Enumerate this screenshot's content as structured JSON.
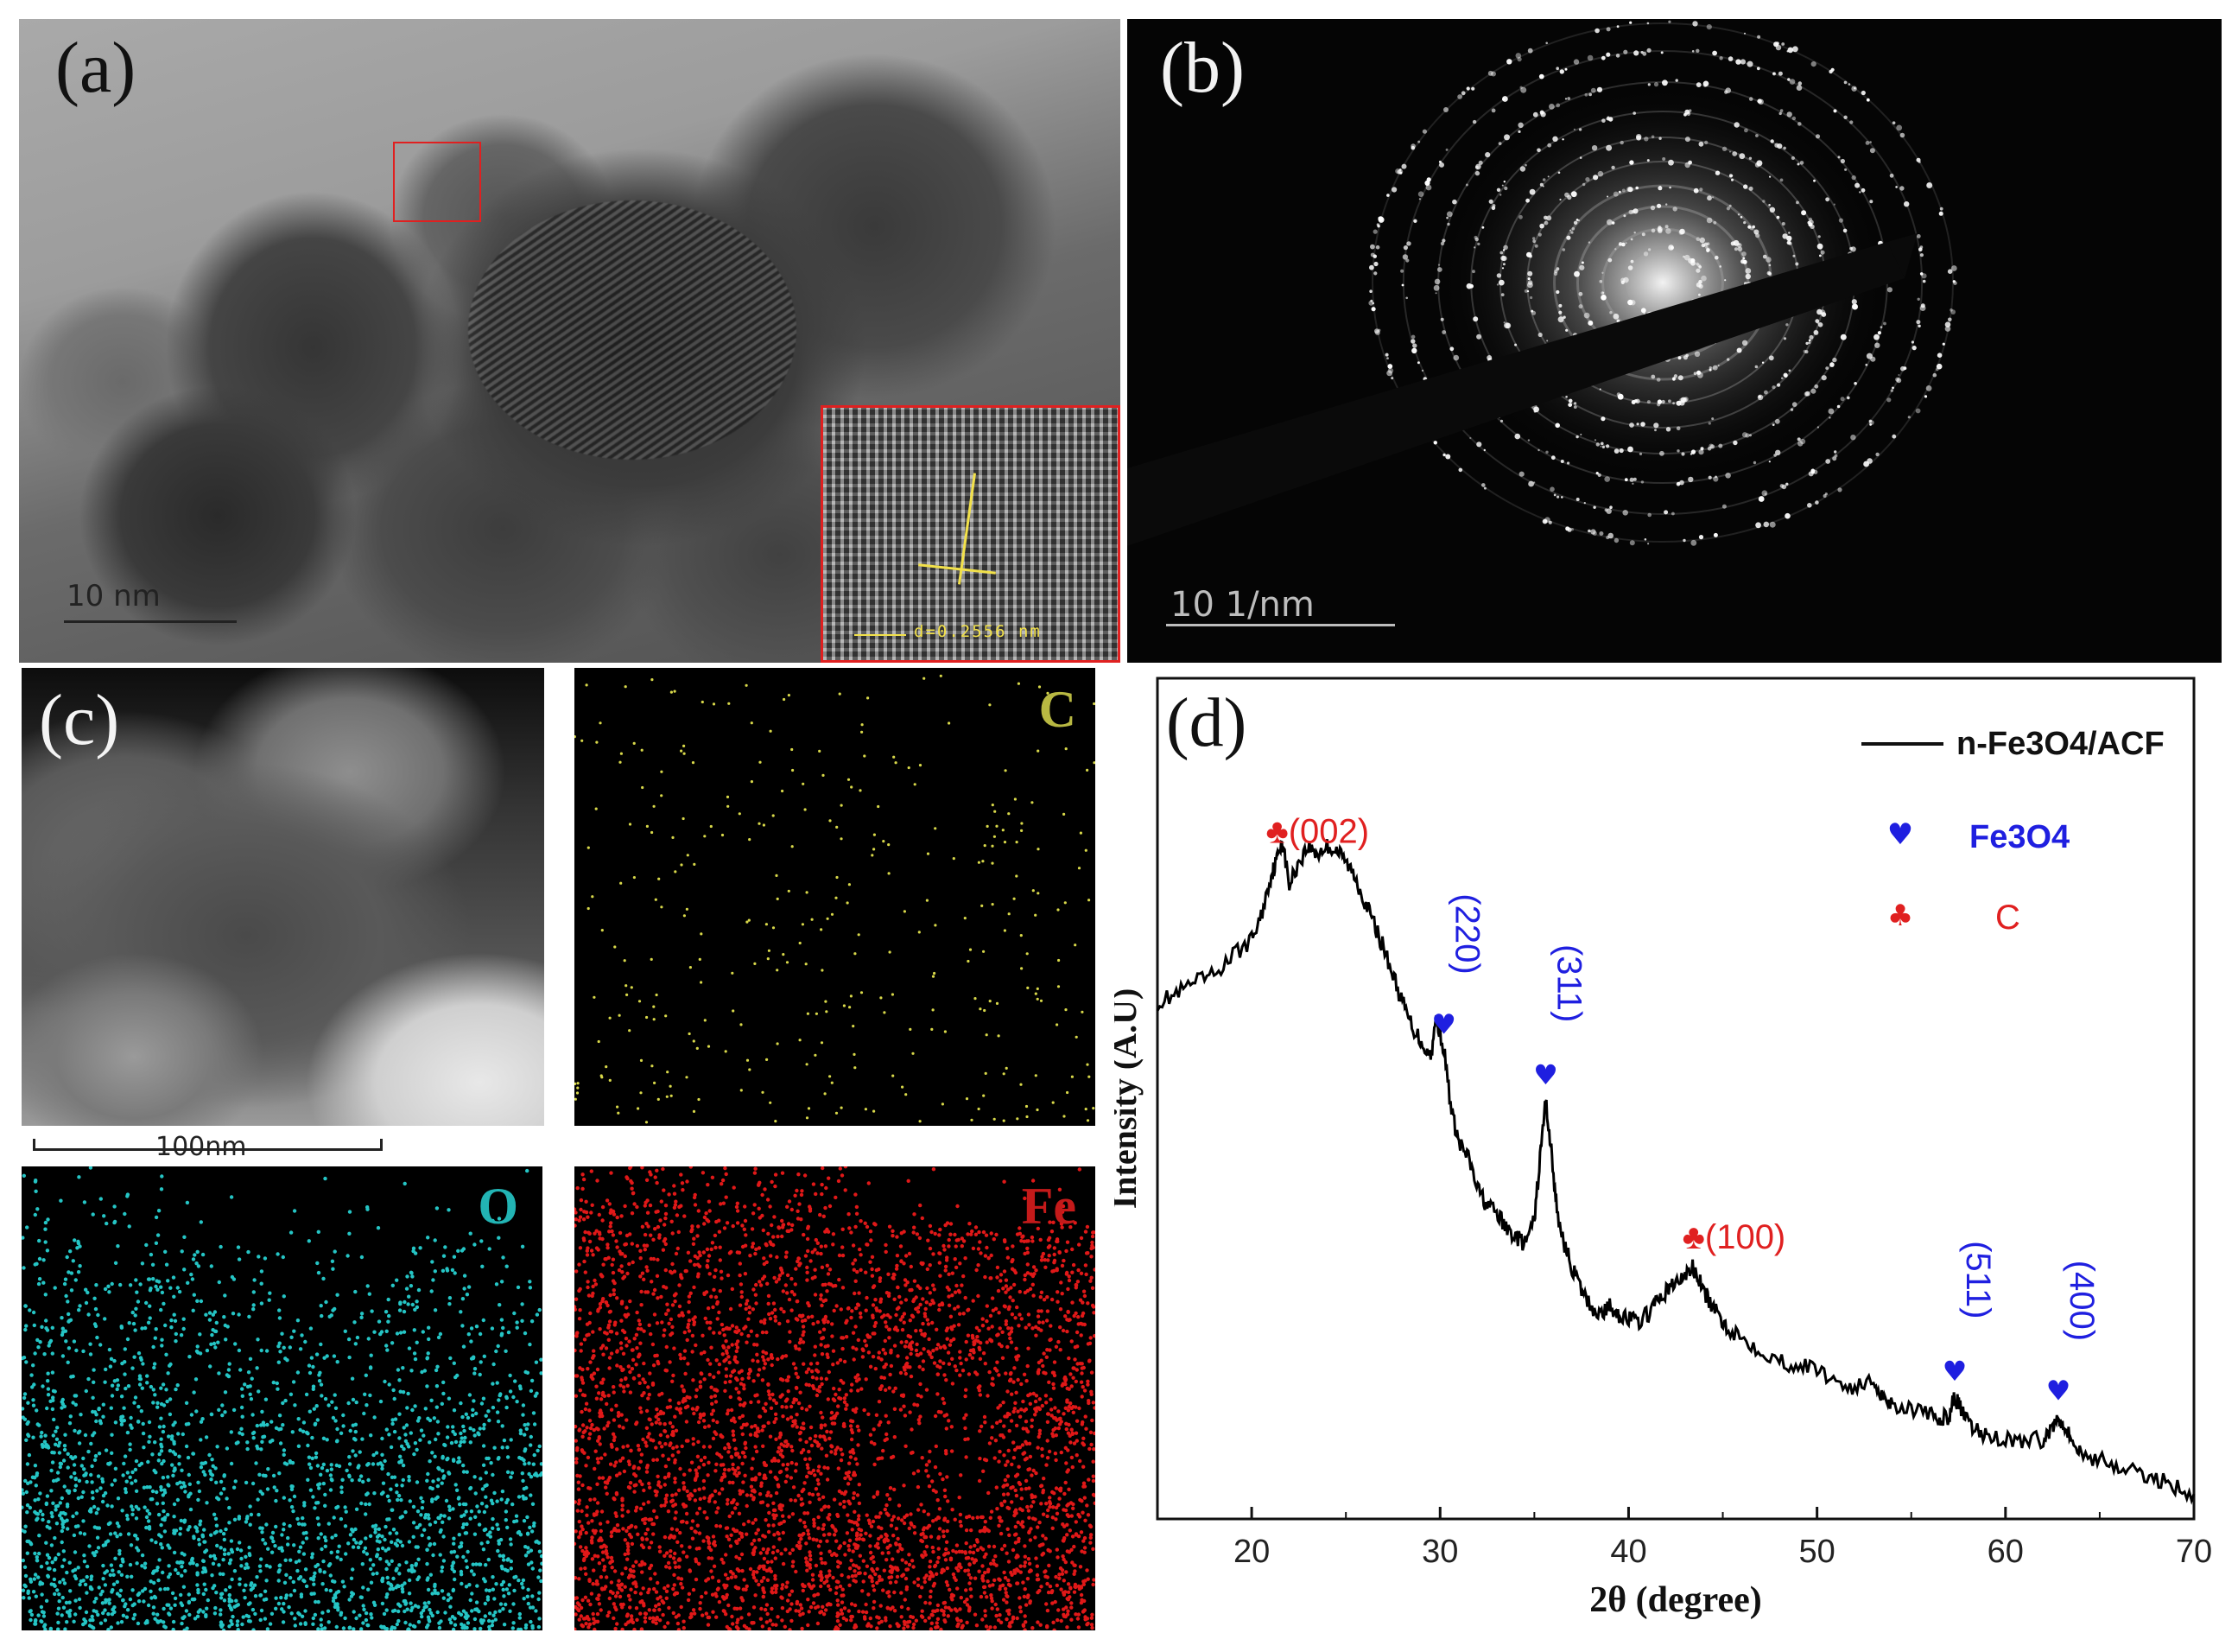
{
  "panels": {
    "a": {
      "label": "(a)",
      "scale_bar": "10 nm",
      "inset_annotation": "d=0.2556 nm"
    },
    "b": {
      "label": "(b)",
      "scale_bar": "10 1/nm"
    },
    "c": {
      "label": "(c)",
      "scale_bar": "100nm",
      "maps": {
        "C": "C",
        "O": "O",
        "Fe": "Fe"
      }
    },
    "d": {
      "label": "(d)"
    }
  },
  "colors": {
    "carbon_map": "#d8d84a",
    "oxygen_map": "#25c5c5",
    "iron_map": "#e01818",
    "fe3o4_marker": "#1f1fe0",
    "carbon_marker": "#e02020",
    "curve": "#000000"
  },
  "chart_data": {
    "type": "line",
    "xlabel": "2θ (degree)",
    "ylabel": "Intensity (A.U)",
    "xlim": [
      15,
      70
    ],
    "ylim": [
      0,
      100
    ],
    "xticks": [
      20,
      30,
      40,
      50,
      60,
      70
    ],
    "grid": false,
    "legend": {
      "placement": "top-right",
      "entries": [
        {
          "label": "n-Fe3O4/ACF",
          "marker": "line"
        },
        {
          "label": "Fe3O4",
          "marker": "♥"
        },
        {
          "label": "C",
          "marker": "♣"
        }
      ]
    },
    "series": [
      {
        "name": "n-Fe3O4/ACF",
        "x": [
          15,
          16,
          17,
          18,
          19,
          20,
          20.5,
          21,
          21.3,
          21.6,
          22,
          22.5,
          23,
          23.5,
          24,
          24.5,
          25,
          25.5,
          26,
          26.5,
          27,
          27.5,
          28,
          28.5,
          29,
          29.5,
          29.8,
          30.2,
          30.6,
          31,
          31.5,
          32,
          32.5,
          33,
          33.5,
          34,
          34.5,
          35,
          35.3,
          35.6,
          35.9,
          36.2,
          36.6,
          37,
          37.5,
          38,
          38.5,
          39,
          39.5,
          40,
          40.5,
          41,
          41.5,
          42,
          42.5,
          43,
          43.4,
          43.8,
          44.2,
          44.7,
          45.2,
          46,
          47,
          48,
          49,
          50,
          51,
          52,
          53,
          53.5,
          54,
          55,
          56,
          56.5,
          57,
          57.3,
          57.6,
          58,
          58.5,
          59,
          60,
          61,
          62,
          62.5,
          62.8,
          63.1,
          63.5,
          64,
          65,
          66,
          67,
          68,
          69,
          70
        ],
        "y": [
          64,
          65,
          66.5,
          67.5,
          70,
          72,
          75,
          80,
          82,
          85,
          79,
          82,
          84,
          83,
          84,
          83.5,
          82,
          80,
          77,
          74,
          71,
          67.5,
          64,
          61,
          59,
          57,
          62,
          58,
          50,
          46,
          44,
          40,
          38,
          37,
          35,
          34,
          33,
          36,
          44,
          51.5,
          45,
          37,
          33,
          30,
          27,
          25,
          24,
          25,
          24,
          23.5,
          23,
          24,
          25.5,
          27,
          28,
          29,
          30,
          28,
          26,
          24,
          22.5,
          21,
          19.5,
          18,
          17.5,
          17,
          15.5,
          14.5,
          15.5,
          13.5,
          12.5,
          12,
          11,
          10.5,
          11,
          13.5,
          12,
          10,
          9,
          8.5,
          8,
          7.8,
          8,
          9.5,
          11,
          10,
          8,
          6,
          5.5,
          4.5,
          3.5,
          3,
          2,
          1
        ]
      }
    ],
    "annotations": [
      {
        "text": "♣(002)",
        "x": 21.3,
        "y": 82,
        "color": "#e02020",
        "orient": "horizontal"
      },
      {
        "text": "(220)",
        "x": 30.2,
        "y": 58,
        "color": "#1f1fe0",
        "orient": "vertical",
        "marker": "♥"
      },
      {
        "text": "(311)",
        "x": 35.6,
        "y": 51.5,
        "color": "#1f1fe0",
        "orient": "vertical",
        "marker": "♥"
      },
      {
        "text": "♣(100)",
        "x": 43.4,
        "y": 30,
        "color": "#e02020",
        "orient": "horizontal"
      },
      {
        "text": "(511)",
        "x": 57.3,
        "y": 13.5,
        "color": "#1f1fe0",
        "orient": "vertical",
        "marker": "♥"
      },
      {
        "text": "(400)",
        "x": 62.8,
        "y": 11,
        "color": "#1f1fe0",
        "orient": "vertical",
        "marker": "♥"
      }
    ]
  }
}
